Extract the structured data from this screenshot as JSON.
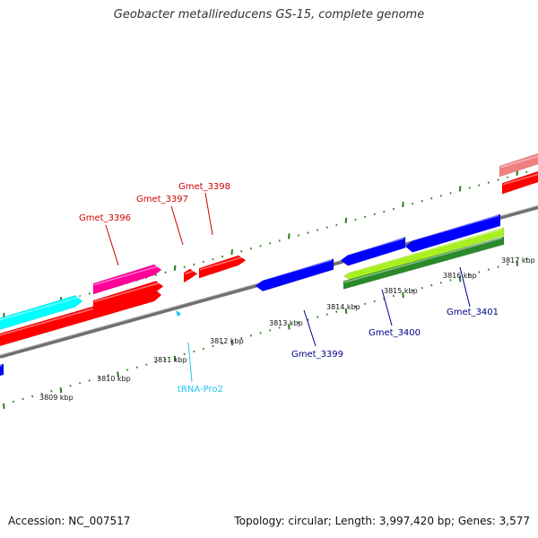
{
  "title": "Geobacter metallireducens GS-15, complete genome",
  "footer": {
    "accession": "Accession: NC_007517",
    "summary": "Topology: circular; Length: 3,997,420 bp; Genes: 3,577"
  },
  "colors": {
    "backbone": "#808080",
    "tick": "#2e7d1e",
    "forward_label": "#cc0000",
    "reverse_label": "#00008b",
    "trna_label": "#1ec8f0",
    "red": "#ff0000",
    "magenta": "#ff0099",
    "cyan": "#00ffff",
    "blue": "#0000ff",
    "pink": "#f08080",
    "lime": "#a8f020",
    "green": "#2a8a2a"
  },
  "scale_labels": [
    {
      "text": "3809 kbp"
    },
    {
      "text": "3810 kbp"
    },
    {
      "text": "3811 kbp"
    },
    {
      "text": "3812 kbp"
    },
    {
      "text": "3813 kbp"
    },
    {
      "text": "3814 kbp"
    },
    {
      "text": "3815 kbp"
    },
    {
      "text": "3816 kbp"
    },
    {
      "text": "3817 kbp"
    }
  ],
  "gene_labels": [
    {
      "text": "Gmet_3396",
      "strand": "forward"
    },
    {
      "text": "Gmet_3397",
      "strand": "forward"
    },
    {
      "text": "Gmet_3398",
      "strand": "forward"
    },
    {
      "text": "tRNA-Pro2",
      "strand": "trna"
    },
    {
      "text": "Gmet_3399",
      "strand": "reverse"
    },
    {
      "text": "Gmet_3400",
      "strand": "reverse"
    },
    {
      "text": "Gmet_3401",
      "strand": "reverse"
    }
  ]
}
